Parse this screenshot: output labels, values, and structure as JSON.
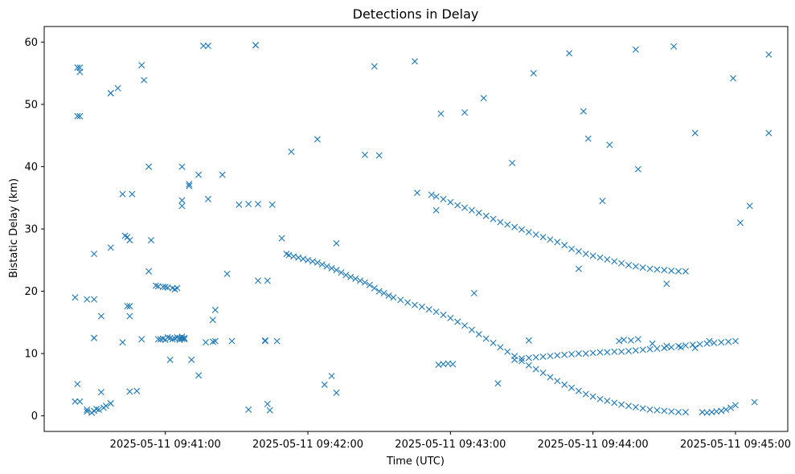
{
  "chart_data": {
    "type": "scatter",
    "title": "Detections in Delay",
    "xlabel": "Time (UTC)",
    "ylabel": "Bistatic Delay (km)",
    "marker": "x",
    "color": "#1f77b4",
    "grid": false,
    "legend": "none",
    "xlim": [
      "2025-05-11 09:40:09",
      "2025-05-11 09:45:22"
    ],
    "ylim": [
      -2.5,
      62.5
    ],
    "xticks": [
      "2025-05-11 09:41:00",
      "2025-05-11 09:42:00",
      "2025-05-11 09:43:00",
      "2025-05-11 09:44:00",
      "2025-05-11 09:45:00"
    ],
    "yticks": [
      0,
      10,
      20,
      30,
      40,
      50,
      60
    ],
    "series": [
      {
        "x": [
          "2025-05-11 09:40:22",
          "2025-05-11 09:40:23",
          "2025-05-11 09:40:24",
          "2025-05-11 09:40:24",
          "2025-05-11 09:40:24",
          "2025-05-11 09:40:23",
          "2025-05-11 09:40:27",
          "2025-05-11 09:40:29",
          "2025-05-11 09:40:30",
          "2025-05-11 09:40:31",
          "2025-05-11 09:40:32",
          "2025-05-11 09:40:34",
          "2025-05-11 09:40:35",
          "2025-05-11 09:40:37",
          "2025-05-11 09:40:30",
          "2025-05-11 09:40:30",
          "2025-05-11 09:40:30",
          "2025-05-11 09:40:33",
          "2025-05-11 09:40:37",
          "2025-05-11 09:40:37",
          "2025-05-11 09:40:40",
          "2025-05-11 09:40:42",
          "2025-05-11 09:40:43",
          "2025-05-11 09:40:44",
          "2025-05-11 09:40:45",
          "2025-05-11 09:40:45",
          "2025-05-11 09:40:45",
          "2025-05-11 09:40:46",
          "2025-05-11 09:40:50",
          "2025-05-11 09:40:51",
          "2025-05-11 09:40:53",
          "2025-05-11 09:40:54",
          "2025-05-11 09:40:56",
          "2025-05-11 09:40:57",
          "2025-05-11 09:40:57",
          "2025-05-11 09:40:59",
          "2025-05-11 09:41:00",
          "2025-05-11 09:41:01",
          "2025-05-11 09:41:03",
          "2025-05-11 09:41:04",
          "2025-05-11 09:41:05",
          "2025-05-11 09:41:06",
          "2025-05-11 09:41:07",
          "2025-05-11 09:41:08",
          "2025-05-11 09:40:58",
          "2025-05-11 09:40:59",
          "2025-05-11 09:41:00",
          "2025-05-11 09:41:01",
          "2025-05-11 09:41:02",
          "2025-05-11 09:41:03",
          "2025-05-11 09:41:04",
          "2025-05-11 09:41:05",
          "2025-05-11 09:41:06",
          "2025-05-11 09:41:07",
          "2025-05-11 09:41:07",
          "2025-05-11 09:41:08",
          "2025-05-11 09:41:02",
          "2025-05-11 09:41:07",
          "2025-05-11 09:41:07",
          "2025-05-11 09:41:07",
          "2025-05-11 09:41:10",
          "2025-05-11 09:41:10",
          "2025-05-11 09:41:14",
          "2025-05-11 09:41:16",
          "2025-05-11 09:41:17",
          "2025-05-11 09:41:18",
          "2025-05-11 09:41:20",
          "2025-05-11 09:41:21",
          "2025-05-11 09:41:21",
          "2025-05-11 09:41:24",
          "2025-05-11 09:41:26",
          "2025-05-11 09:41:28",
          "2025-05-11 09:41:35",
          "2025-05-11 09:41:38",
          "2025-05-11 09:41:39",
          "2025-05-11 09:41:42",
          "2025-05-11 09:41:42",
          "2025-05-11 09:41:43",
          "2025-05-11 09:41:44",
          "2025-05-11 09:41:45",
          "2025-05-11 09:41:47",
          "2025-05-11 09:41:49",
          "2025-05-11 09:41:51",
          "2025-05-11 09:41:52",
          "2025-05-11 09:41:54",
          "2025-05-11 09:41:56",
          "2025-05-11 09:41:58",
          "2025-05-11 09:42:00",
          "2025-05-11 09:42:02",
          "2025-05-11 09:42:04",
          "2025-05-11 09:42:06",
          "2025-05-11 09:42:08",
          "2025-05-11 09:42:10",
          "2025-05-11 09:42:12",
          "2025-05-11 09:42:14",
          "2025-05-11 09:42:16",
          "2025-05-11 09:42:18",
          "2025-05-11 09:42:20",
          "2025-05-11 09:42:22",
          "2025-05-11 09:42:24",
          "2025-05-11 09:42:26",
          "2025-05-11 09:42:28",
          "2025-05-11 09:42:30",
          "2025-05-11 09:42:32",
          "2025-05-11 09:42:34",
          "2025-05-11 09:42:36",
          "2025-05-11 09:42:39",
          "2025-05-11 09:42:42",
          "2025-05-11 09:42:45",
          "2025-05-11 09:42:48",
          "2025-05-11 09:42:51",
          "2025-05-11 09:42:54",
          "2025-05-11 09:42:57",
          "2025-05-11 09:43:00",
          "2025-05-11 09:43:03",
          "2025-05-11 09:43:06",
          "2025-05-11 09:43:09",
          "2025-05-11 09:43:12",
          "2025-05-11 09:43:15",
          "2025-05-11 09:43:18",
          "2025-05-11 09:43:21",
          "2025-05-11 09:43:24",
          "2025-05-11 09:43:27",
          "2025-05-11 09:43:30",
          "2025-05-11 09:43:33",
          "2025-05-11 09:43:36",
          "2025-05-11 09:43:39",
          "2025-05-11 09:43:42",
          "2025-05-11 09:43:45",
          "2025-05-11 09:43:48",
          "2025-05-11 09:43:51",
          "2025-05-11 09:43:54",
          "2025-05-11 09:43:57",
          "2025-05-11 09:44:00",
          "2025-05-11 09:44:03",
          "2025-05-11 09:44:06",
          "2025-05-11 09:44:09",
          "2025-05-11 09:44:12",
          "2025-05-11 09:44:15",
          "2025-05-11 09:44:18",
          "2025-05-11 09:44:21",
          "2025-05-11 09:44:24",
          "2025-05-11 09:44:27",
          "2025-05-11 09:44:30",
          "2025-05-11 09:44:33",
          "2025-05-11 09:44:36",
          "2025-05-11 09:44:39",
          "2025-05-11 09:44:46",
          "2025-05-11 09:44:48",
          "2025-05-11 09:44:50",
          "2025-05-11 09:44:52",
          "2025-05-11 09:44:54",
          "2025-05-11 09:44:56",
          "2025-05-11 09:44:58",
          "2025-05-11 09:45:00",
          "2025-05-11 09:42:52",
          "2025-05-11 09:42:54",
          "2025-05-11 09:42:57",
          "2025-05-11 09:43:00",
          "2025-05-11 09:43:03",
          "2025-05-11 09:43:06",
          "2025-05-11 09:43:09",
          "2025-05-11 09:43:12",
          "2025-05-11 09:43:15",
          "2025-05-11 09:43:18",
          "2025-05-11 09:43:21",
          "2025-05-11 09:43:24",
          "2025-05-11 09:43:27",
          "2025-05-11 09:43:30",
          "2025-05-11 09:43:33",
          "2025-05-11 09:43:36",
          "2025-05-11 09:43:39",
          "2025-05-11 09:43:42",
          "2025-05-11 09:43:45",
          "2025-05-11 09:43:48",
          "2025-05-11 09:43:51",
          "2025-05-11 09:43:54",
          "2025-05-11 09:43:57",
          "2025-05-11 09:44:00",
          "2025-05-11 09:44:03",
          "2025-05-11 09:44:06",
          "2025-05-11 09:44:09",
          "2025-05-11 09:44:12",
          "2025-05-11 09:44:15",
          "2025-05-11 09:44:18",
          "2025-05-11 09:44:21",
          "2025-05-11 09:44:24",
          "2025-05-11 09:44:27",
          "2025-05-11 09:44:30",
          "2025-05-11 09:44:33",
          "2025-05-11 09:44:36",
          "2025-05-11 09:44:39",
          "2025-05-11 09:42:55",
          "2025-05-11 09:42:57",
          "2025-05-11 09:42:59",
          "2025-05-11 09:43:01",
          "2025-05-11 09:43:27",
          "2025-05-11 09:43:30",
          "2025-05-11 09:43:33",
          "2025-05-11 09:43:36",
          "2025-05-11 09:43:39",
          "2025-05-11 09:43:42",
          "2025-05-11 09:43:45",
          "2025-05-11 09:43:48",
          "2025-05-11 09:43:51",
          "2025-05-11 09:43:54",
          "2025-05-11 09:43:57",
          "2025-05-11 09:44:00",
          "2025-05-11 09:44:03",
          "2025-05-11 09:44:06",
          "2025-05-11 09:44:09",
          "2025-05-11 09:44:12",
          "2025-05-11 09:44:15",
          "2025-05-11 09:44:18",
          "2025-05-11 09:44:21",
          "2025-05-11 09:44:24",
          "2025-05-11 09:44:27",
          "2025-05-11 09:44:30",
          "2025-05-11 09:44:33",
          "2025-05-11 09:44:36",
          "2025-05-11 09:44:39",
          "2025-05-11 09:44:42",
          "2025-05-11 09:44:45",
          "2025-05-11 09:44:48",
          "2025-05-11 09:44:51",
          "2025-05-11 09:44:54",
          "2025-05-11 09:44:57",
          "2025-05-11 09:45:00",
          "2025-05-11 09:44:11",
          "2025-05-11 09:44:13",
          "2025-05-11 09:44:16",
          "2025-05-11 09:44:19",
          "2025-05-11 09:44:25",
          "2025-05-11 09:44:31",
          "2025-05-11 09:44:37",
          "2025-05-11 09:44:43",
          "2025-05-11 09:40:22",
          "2025-05-11 09:40:23",
          "2025-05-11 09:40:24",
          "2025-05-11 09:40:27",
          "2025-05-11 09:40:37",
          "2025-05-11 09:40:42",
          "2025-05-11 09:40:50",
          "2025-05-11 09:40:53",
          "2025-05-11 09:41:18",
          "2025-05-11 09:41:31",
          "2025-05-11 09:41:38",
          "2025-05-11 09:42:04",
          "2025-05-11 09:42:12",
          "2025-05-11 09:42:30",
          "2025-05-11 09:42:46",
          "2025-05-11 09:42:56",
          "2025-05-11 09:43:14",
          "2025-05-11 09:43:26",
          "2025-05-11 09:43:35",
          "2025-05-11 09:43:50",
          "2025-05-11 09:43:56",
          "2025-05-11 09:44:18",
          "2025-05-11 09:44:34",
          "2025-05-11 09:44:59",
          "2025-05-11 09:45:14",
          "2025-05-11 09:40:27",
          "2025-05-11 09:40:30",
          "2025-05-11 09:40:33",
          "2025-05-11 09:40:37",
          "2025-05-11 09:40:44",
          "2025-05-11 09:40:45",
          "2025-05-11 09:40:48",
          "2025-05-11 09:41:11",
          "2025-05-11 09:41:14",
          "2025-05-11 09:41:20",
          "2025-05-11 09:41:35",
          "2025-05-11 09:41:39",
          "2025-05-11 09:41:43",
          "2025-05-11 09:41:53",
          "2025-05-11 09:42:07",
          "2025-05-11 09:42:10",
          "2025-05-11 09:42:12",
          "2025-05-11 09:42:24",
          "2025-05-11 09:42:28",
          "2025-05-11 09:42:45",
          "2025-05-11 09:42:54",
          "2025-05-11 09:43:06",
          "2025-05-11 09:43:10",
          "2025-05-11 09:43:20",
          "2025-05-11 09:43:33",
          "2025-05-11 09:43:54",
          "2025-05-11 09:43:58",
          "2025-05-11 09:44:04",
          "2025-05-11 09:44:07",
          "2025-05-11 09:44:19",
          "2025-05-11 09:44:31",
          "2025-05-11 09:44:43",
          "2025-05-11 09:44:49",
          "2025-05-11 09:45:02",
          "2025-05-11 09:45:06",
          "2025-05-11 09:45:08",
          "2025-05-11 09:45:14"
        ],
        "y": [
          19.0,
          5.1,
          2.3,
          55.2,
          55.9,
          48.1,
          0.7,
          0.5,
          0.8,
          1.1,
          1.0,
          1.3,
          1.6,
          2.0,
          26.0,
          18.7,
          12.5,
          3.8,
          27.0,
          51.8,
          52.6,
          11.8,
          28.9,
          28.7,
          16.0,
          17.6,
          3.9,
          35.6,
          56.3,
          53.9,
          23.2,
          28.2,
          20.9,
          12.3,
          20.8,
          20.7,
          20.7,
          20.6,
          20.5,
          20.3,
          20.5,
          12.2,
          12.4,
          12.5,
          12.3,
          12.4,
          12.2,
          12.6,
          12.5,
          12.3,
          12.4,
          12.6,
          12.5,
          12.7,
          12.4,
          12.3,
          9.0,
          40.0,
          33.7,
          34.6,
          37.2,
          36.9,
          6.5,
          59.4,
          11.8,
          34.8,
          11.9,
          17.0,
          12.0,
          38.7,
          22.8,
          12.0,
          34.0,
          59.5,
          21.7,
          12.0,
          12.1,
          1.9,
          0.9,
          33.9,
          12.0,
          28.5,
          26.0,
          25.8,
          25.6,
          25.4,
          25.2,
          25.0,
          24.8,
          24.6,
          24.3,
          24.0,
          23.7,
          23.4,
          23.0,
          22.6,
          22.3,
          22.0,
          21.7,
          21.4,
          21.0,
          20.5,
          20.0,
          19.7,
          19.3,
          19.0,
          18.6,
          18.2,
          17.8,
          17.5,
          17.1,
          16.7,
          16.2,
          15.7,
          15.1,
          14.5,
          13.8,
          13.1,
          12.4,
          11.7,
          11.0,
          10.3,
          9.6,
          8.8,
          8.1,
          7.5,
          6.9,
          6.2,
          5.6,
          5.0,
          4.5,
          4.0,
          3.5,
          3.1,
          2.7,
          2.4,
          2.1,
          1.8,
          1.6,
          1.4,
          1.2,
          1.0,
          0.9,
          0.8,
          0.7,
          0.6,
          0.6,
          0.6,
          0.5,
          0.6,
          0.7,
          0.8,
          1.0,
          1.3,
          1.7,
          35.5,
          35.2,
          34.8,
          34.3,
          33.8,
          33.4,
          33.0,
          32.6,
          32.1,
          31.6,
          31.1,
          30.7,
          30.3,
          29.9,
          29.5,
          29.1,
          28.7,
          28.3,
          27.9,
          27.4,
          26.8,
          26.4,
          26.0,
          25.7,
          25.4,
          25.1,
          24.8,
          24.5,
          24.2,
          24.0,
          23.8,
          23.6,
          23.5,
          23.4,
          23.3,
          23.2,
          23.2,
          8.2,
          8.3,
          8.4,
          8.3,
          9.0,
          9.2,
          9.3,
          9.4,
          9.5,
          9.6,
          9.7,
          9.8,
          9.9,
          10.0,
          10.0,
          10.1,
          10.2,
          10.2,
          10.3,
          10.3,
          10.4,
          10.5,
          10.6,
          10.7,
          10.8,
          10.9,
          11.0,
          11.2,
          11.3,
          11.4,
          11.5,
          11.6,
          11.7,
          11.8,
          11.9,
          12.0,
          12.0,
          12.2,
          12.1,
          12.3,
          11.6,
          11.2,
          11.0,
          10.9,
          2.3,
          55.9,
          48.1,
          1.0,
          51.8,
          35.6,
          12.3,
          40.0,
          59.4,
          33.9,
          59.5,
          44.4,
          27.7,
          41.8,
          35.8,
          48.5,
          51.0,
          40.6,
          55.0,
          58.2,
          48.9,
          58.8,
          59.3,
          54.2,
          58.0,
          18.7,
          12.5,
          16.0,
          2.0,
          17.6,
          28.2,
          4.0,
          9.0,
          38.7,
          15.4,
          1.0,
          34.0,
          21.7,
          42.4,
          5.0,
          6.4,
          3.7,
          41.9,
          56.1,
          56.9,
          33.0,
          48.7,
          19.7,
          5.2,
          12.1,
          23.6,
          44.5,
          34.5,
          43.5,
          39.6,
          21.2,
          45.4,
          12.0,
          31.0,
          33.7,
          2.2,
          45.4
        ]
      }
    ]
  }
}
